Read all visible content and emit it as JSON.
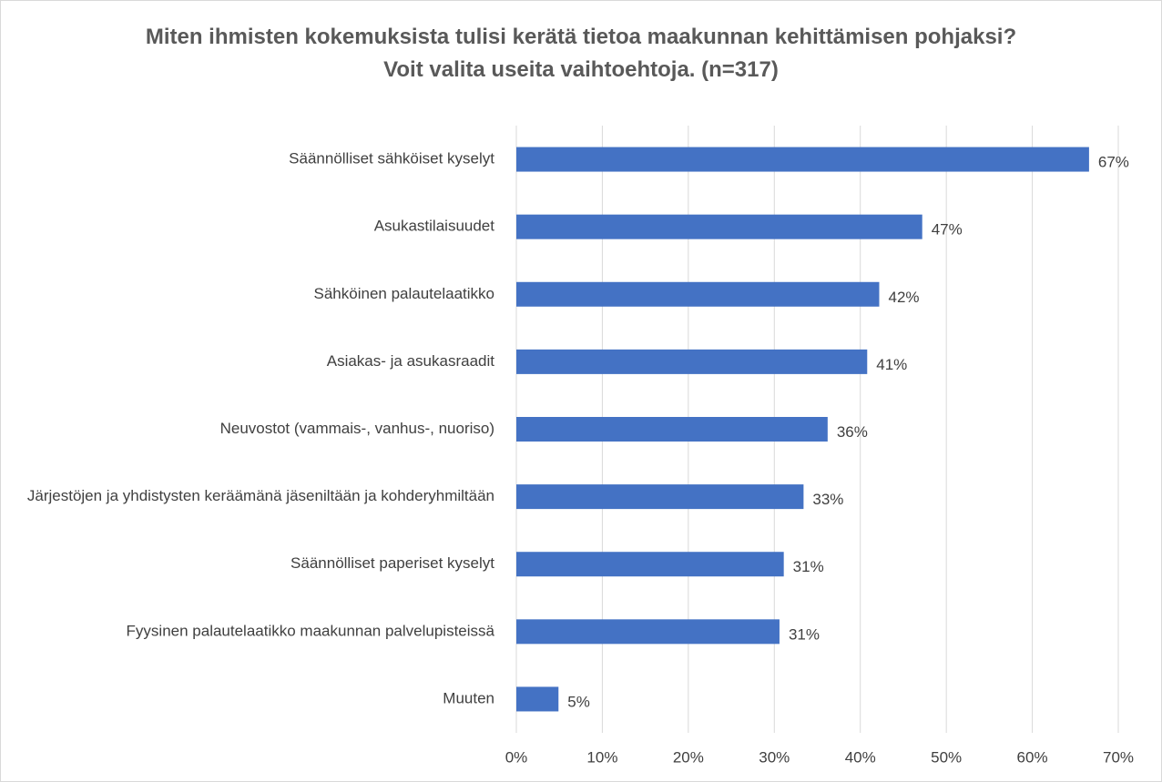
{
  "chart_data": {
    "type": "bar",
    "orientation": "horizontal",
    "title": "Miten ihmisten kokemuksista tulisi kerätä tietoa maakunnan kehittämisen pohjaksi? Voit valita useita vaihtoehtoja. (n=317)",
    "categories": [
      "Säännölliset sähköiset kyselyt",
      "Asukastilaisuudet",
      "Sähköinen palautelaatikko",
      "Asiakas- ja asukasraadit",
      "Neuvostot (vammais-, vanhus-, nuoriso)",
      "Järjestöjen ja yhdistysten keräämänä jäseniltään ja kohderyhmiltään",
      "Säännölliset paperiset kyselyt",
      "Fyysinen palautelaatikko maakunnan palvelupisteissä",
      "Muuten"
    ],
    "values": [
      66.6,
      47.2,
      42.2,
      40.8,
      36.2,
      33.4,
      31.1,
      30.6,
      4.9
    ],
    "value_labels": [
      "67%",
      "47%",
      "42%",
      "41%",
      "36%",
      "33%",
      "31%",
      "31%",
      "5%"
    ],
    "color": "#4472c4",
    "xlim": [
      0,
      70
    ],
    "xticks": [
      {
        "value": 0,
        "label": "0%"
      },
      {
        "value": 10,
        "label": "10%"
      },
      {
        "value": 20,
        "label": "20%"
      },
      {
        "value": 30,
        "label": "30%"
      },
      {
        "value": 40,
        "label": "40%"
      },
      {
        "value": 50,
        "label": "50%"
      },
      {
        "value": 60,
        "label": "60%"
      },
      {
        "value": 70,
        "label": "70%"
      }
    ],
    "grid": true
  }
}
